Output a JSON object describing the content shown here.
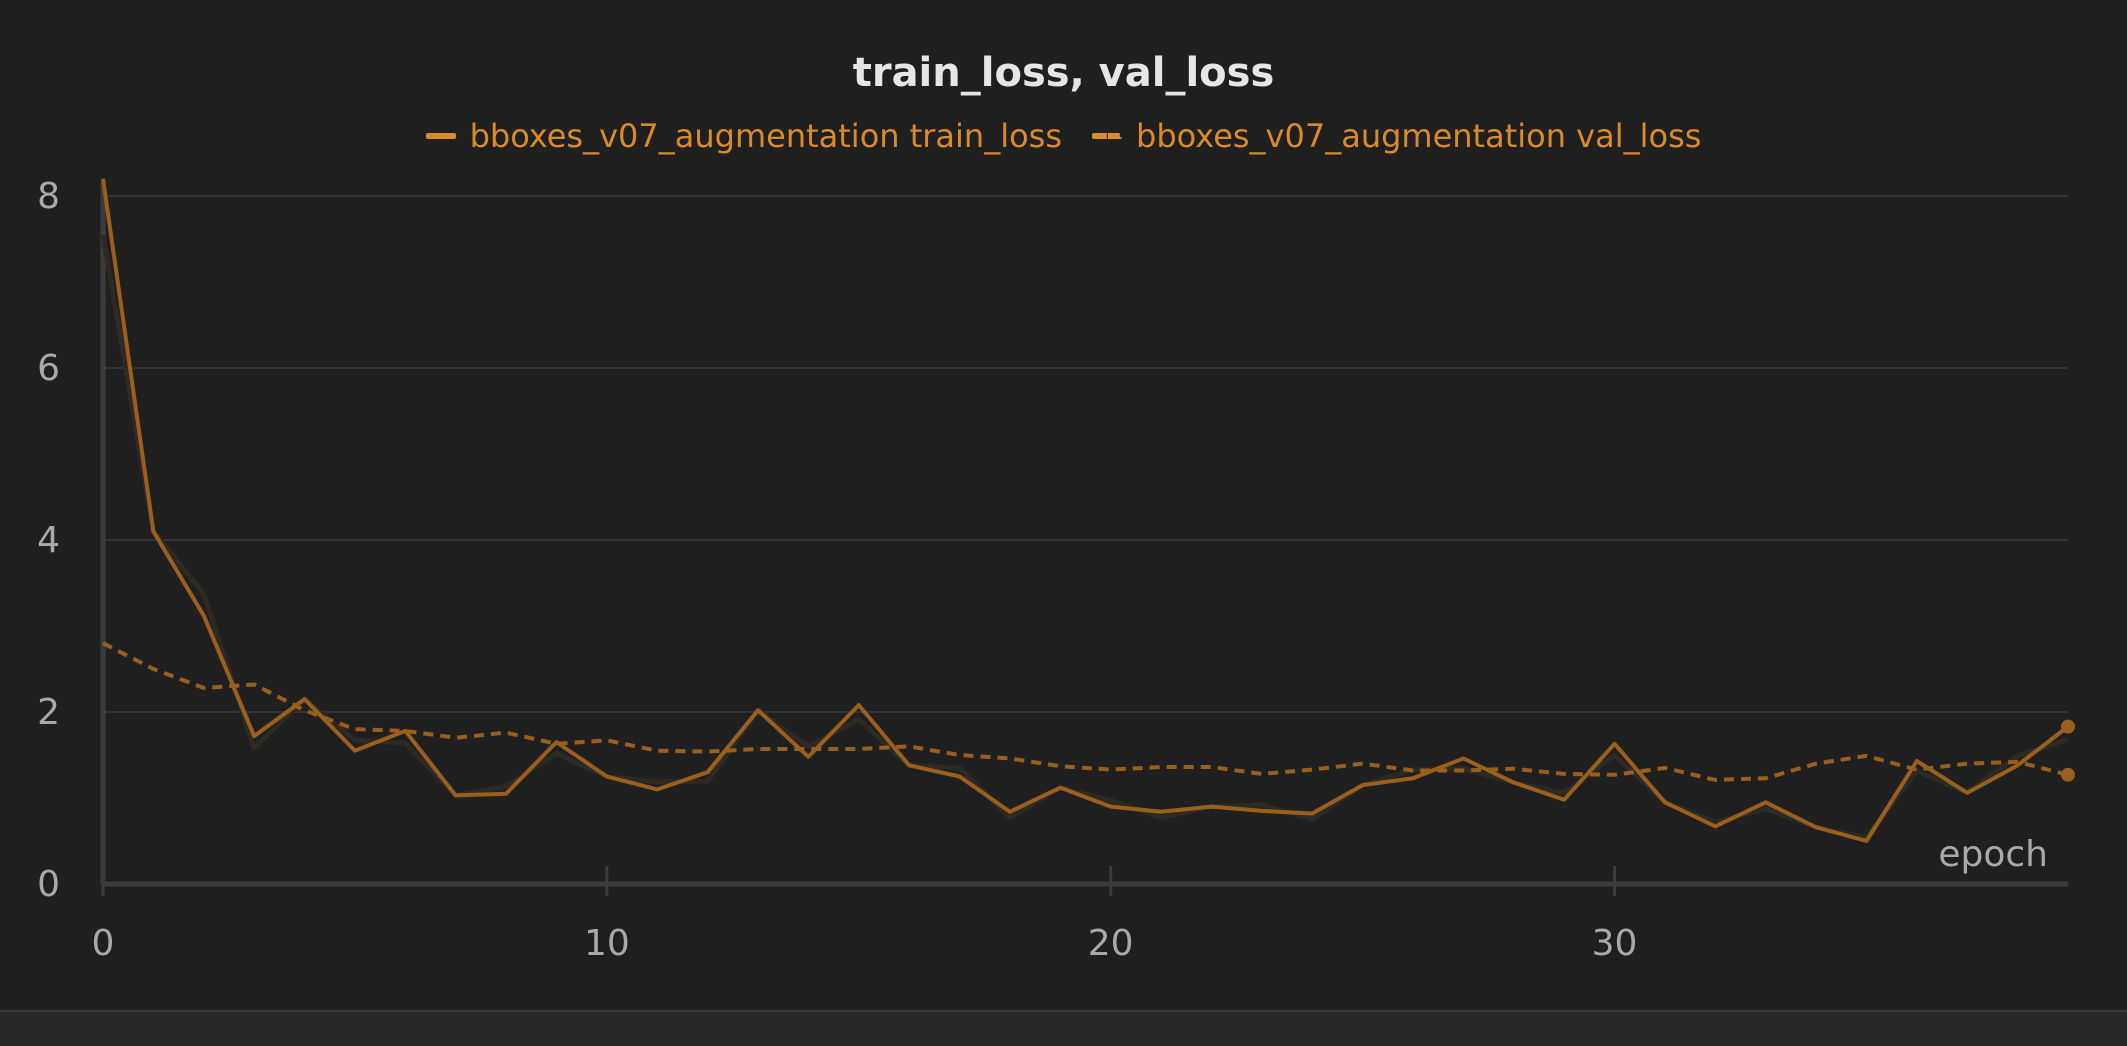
{
  "chart_data": {
    "type": "line",
    "title": "train_loss, val_loss",
    "xlabel": "epoch",
    "ylabel": "",
    "xlim": [
      0,
      39
    ],
    "ylim": [
      0,
      8
    ],
    "x_ticks": [
      0,
      10,
      20,
      30
    ],
    "y_ticks": [
      0,
      2,
      4,
      6,
      8
    ],
    "grid": true,
    "legend_position": "top-center",
    "colors": {
      "series": "#9a5f1c",
      "legend_text": "#d98a2b",
      "raw_shadow": "#2d2923",
      "grid": "#333333",
      "axis": "#3c3c3c",
      "tick_text": "#a9a9a9",
      "title": "#e6e6e6",
      "background": "#1f1f1f"
    },
    "x": [
      0,
      1,
      2,
      3,
      4,
      5,
      6,
      7,
      8,
      9,
      10,
      11,
      12,
      13,
      14,
      15,
      16,
      17,
      18,
      19,
      20,
      21,
      22,
      23,
      24,
      25,
      26,
      27,
      28,
      29,
      30,
      31,
      32,
      33,
      34,
      35,
      36,
      37,
      38,
      39
    ],
    "series": [
      {
        "name": "bboxes_v07_augmentation train_loss",
        "style": "solid",
        "values": [
          8.2,
          4.1,
          3.12,
          1.72,
          2.15,
          1.55,
          1.78,
          1.03,
          1.05,
          1.65,
          1.25,
          1.1,
          1.3,
          2.02,
          1.48,
          2.08,
          1.38,
          1.25,
          0.84,
          1.12,
          0.9,
          0.84,
          0.9,
          0.85,
          0.82,
          1.15,
          1.23,
          1.46,
          1.18,
          0.98,
          1.63,
          0.95,
          0.67,
          0.95,
          0.66,
          0.5,
          1.43,
          1.06,
          1.38,
          1.83
        ]
      },
      {
        "name": "bboxes_v07_augmentation val_loss",
        "style": "dashed",
        "values": [
          2.8,
          2.5,
          2.28,
          2.32,
          2.02,
          1.8,
          1.78,
          1.7,
          1.76,
          1.63,
          1.67,
          1.55,
          1.54,
          1.57,
          1.57,
          1.57,
          1.6,
          1.5,
          1.46,
          1.37,
          1.33,
          1.36,
          1.36,
          1.28,
          1.33,
          1.4,
          1.32,
          1.32,
          1.34,
          1.28,
          1.27,
          1.35,
          1.21,
          1.23,
          1.4,
          1.49,
          1.33,
          1.4,
          1.42,
          1.27
        ]
      }
    ]
  }
}
